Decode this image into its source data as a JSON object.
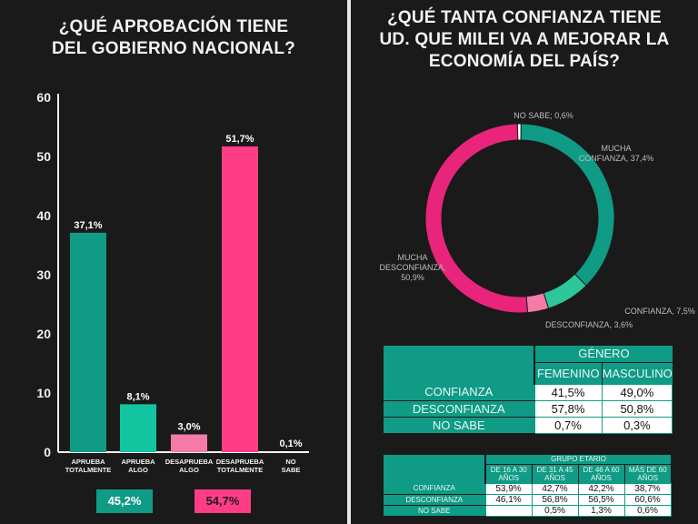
{
  "left": {
    "title_line1": "¿QUÉ APROBACIÓN TIENE",
    "title_line2": "DEL GOBIERNO NACIONAL?",
    "sum_approve": "45,2%",
    "sum_disapprove": "54,7%"
  },
  "right": {
    "title_line1": "¿QUÉ  TANTA CONFIANZA TIENE",
    "title_line2": "UD. QUE MILEI VA A MEJORAR LA",
    "title_line3": "ECONOMÍA DEL PAÍS?",
    "gender_table": {
      "group_header": "GÉNERO",
      "col1": "FEMENINO",
      "col2": "MASCULINO",
      "rows": [
        {
          "label": "CONFIANZA",
          "v1": "41,5%",
          "v2": "49,0%"
        },
        {
          "label": "DESCONFIANZA",
          "v1": "57,8%",
          "v2": "50,8%"
        },
        {
          "label": "NO SABE",
          "v1": "0,7%",
          "v2": "0,3%"
        }
      ]
    },
    "age_table": {
      "group_header": "GRUPO ETARIO",
      "cols": [
        "DE 16 A 30 AÑOS",
        "DE 31 A 45 AÑOS",
        "DE 46 A 60 AÑOS",
        "MÁS DE 60 AÑOS"
      ],
      "rows": [
        {
          "label": "CONFIANZA",
          "vals": [
            "53,9%",
            "42,7%",
            "42,2%",
            "38,7%"
          ]
        },
        {
          "label": "DESCONFIANZA",
          "vals": [
            "46,1%",
            "56,8%",
            "56,5%",
            "60,6%"
          ]
        },
        {
          "label": "NO SABE",
          "vals": [
            "",
            "0,5%",
            "1,3%",
            "0,6%"
          ]
        }
      ]
    }
  },
  "chart_data": [
    {
      "type": "bar",
      "title": "¿QUÉ APROBACIÓN TIENE DEL GOBIERNO NACIONAL?",
      "categories": [
        [
          "APRUEBA",
          "TOTALMENTE"
        ],
        [
          "APRUEBA",
          "ALGO"
        ],
        [
          "DESAPRUEBA",
          "ALGO"
        ],
        [
          "DESAPRUEBA",
          "TOTALMENTE"
        ],
        [
          "NO",
          "SABE"
        ]
      ],
      "values": [
        37.1,
        8.1,
        3.0,
        51.7,
        0.1
      ],
      "value_labels": [
        "37,1%",
        "8,1%",
        "3,0%",
        "51,7%",
        "0,1%"
      ],
      "colors": [
        "#0f9b85",
        "#13c4a0",
        "#f47aa8",
        "#ff3d87",
        "#ffffff"
      ],
      "ylim": [
        0,
        60
      ],
      "yticks": [
        0,
        10,
        20,
        30,
        40,
        50,
        60
      ],
      "grid": false
    },
    {
      "type": "pie",
      "donut": true,
      "title": "¿QUÉ  TANTA CONFIANZA TIENE UD. QUE MILEI VA A MEJORAR LA ECONOMÍA DEL PAÍS?",
      "slices": [
        {
          "label": [
            "MUCHA",
            "CONFIANZA, 37,4%"
          ],
          "value": 37.4,
          "color": "#0f9b85"
        },
        {
          "label": [
            "CONFIANZA, 7,5%"
          ],
          "value": 7.5,
          "color": "#2ec79b"
        },
        {
          "label": [
            "DESCONFIANZA, 3,6%"
          ],
          "value": 3.6,
          "color": "#f47aa8"
        },
        {
          "label": [
            "MUCHA",
            "DESCONFIANZA,",
            "50,9%"
          ],
          "value": 50.9,
          "color": "#e8257a"
        },
        {
          "label": [
            "NO SABE; 0,6%"
          ],
          "value": 0.6,
          "color": "#ffffff"
        }
      ]
    }
  ]
}
